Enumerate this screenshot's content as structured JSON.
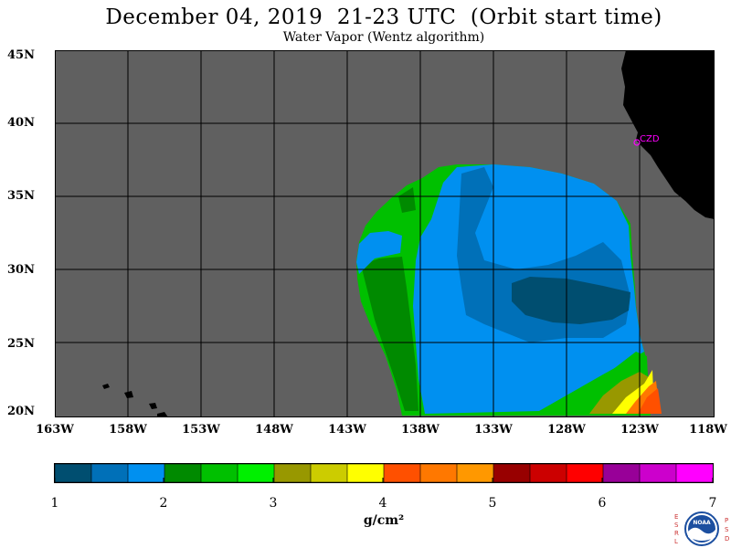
{
  "title": "December 04, 2019  21-23 UTC  (Orbit start time)",
  "subtitle": "Water Vapor (Wentz algorithm)",
  "lat_labels": [
    "45N",
    "40N",
    "35N",
    "30N",
    "25N",
    "20N"
  ],
  "lon_labels": [
    "163W",
    "158W",
    "153W",
    "148W",
    "143W",
    "138W",
    "133W",
    "128W",
    "123W",
    "118W"
  ],
  "station_label": "CZD",
  "colorbar": {
    "ticks": [
      "1",
      "2",
      "3",
      "4",
      "5",
      "6",
      "7"
    ],
    "unit": "g/cm²",
    "colors": [
      "#004e70",
      "#0070b8",
      "#0090f0",
      "#008a00",
      "#00c000",
      "#00f000",
      "#989800",
      "#cccc00",
      "#ffff00",
      "#ff5000",
      "#ff7800",
      "#ff9800",
      "#980000",
      "#cc0000",
      "#ff0000",
      "#980098",
      "#cc00cc",
      "#ff00ff"
    ]
  },
  "colors": {
    "no_data": "#606060",
    "land": "#000000",
    "grid": "#000000",
    "station": "#ff00ff"
  },
  "logo_letters": {
    "left": [
      "E",
      "S",
      "R",
      "L"
    ],
    "right": [
      "P",
      "S",
      "D"
    ],
    "center": "NOAA"
  }
}
